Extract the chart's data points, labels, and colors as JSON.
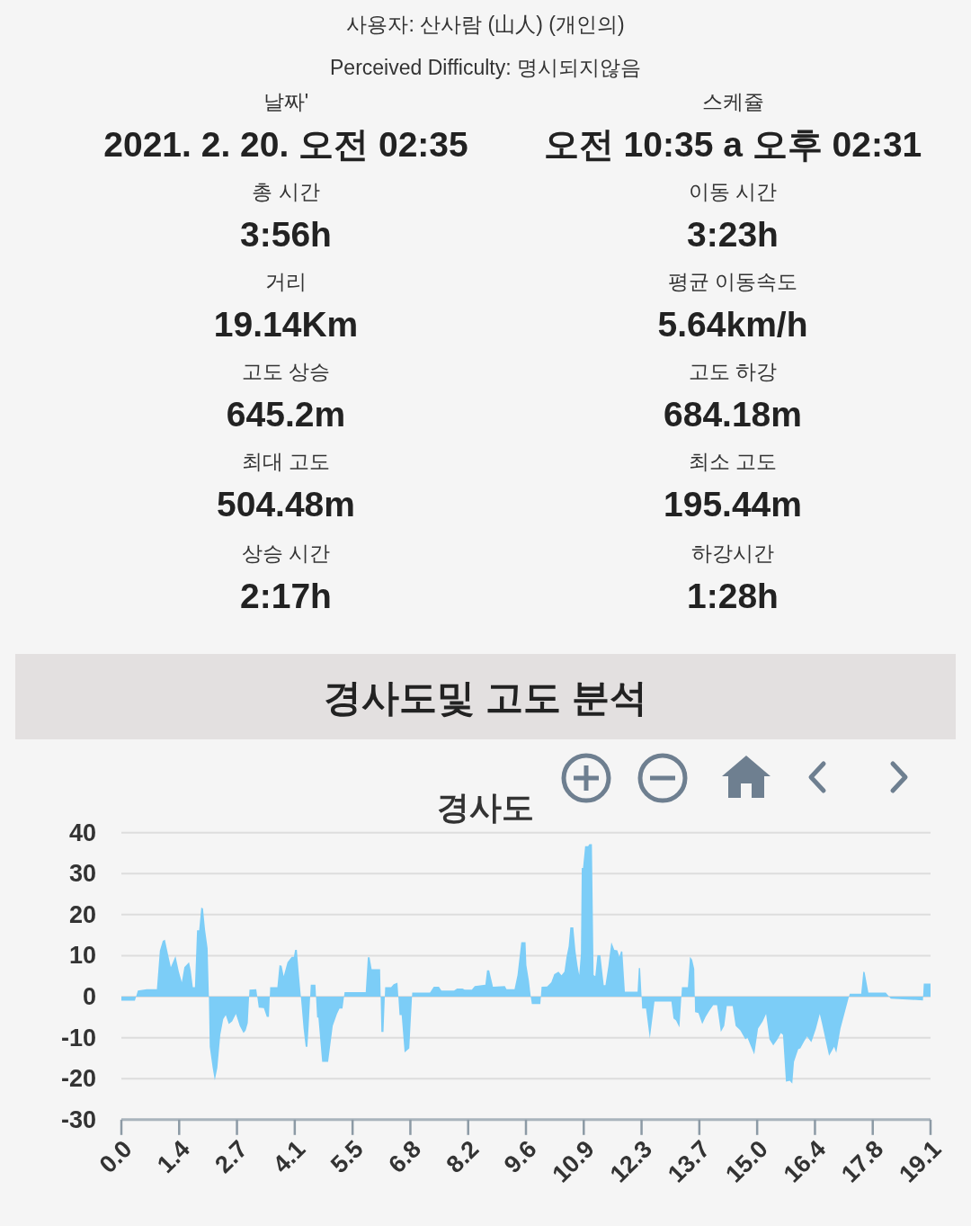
{
  "chart_data": [
    {
      "type": "other",
      "title": "사용자: 산사람 (山人) (개인의)",
      "subtitle": "Perceived Difficulty: 명시되지않음",
      "annotations": [
        "날짜'",
        "2021. 2. 20. 오전 02:35",
        "스케쥴",
        "오전 10:35 a 오후 02:31",
        "총 시간",
        "3:56h",
        "이동 시간",
        "3:23h",
        "거리",
        "19.14Km",
        "평균 이동속도",
        "5.64km/h",
        "고도 상승",
        "645.2m",
        "고도 하강",
        "684.18m",
        "최대 고도",
        "504.48m",
        "최소 고도",
        "195.44m",
        "상승 시간",
        "2:17h",
        "하강시간",
        "1:28h"
      ]
    },
    {
      "type": "area",
      "title": "경사도및 고도 분석",
      "subtitle": "경사도",
      "color": "#7ccdf7",
      "x": [
        0,
        0.32,
        0.39,
        0.6,
        0.84,
        0.91,
        0.98,
        1.03,
        1.1,
        1.17,
        1.28,
        1.36,
        1.43,
        1.49,
        1.6,
        1.64,
        1.69,
        1.74,
        1.79,
        1.84,
        1.89,
        1.93,
        1.98,
        2.04,
        2.07,
        2.09,
        2.16,
        2.21,
        2.27,
        2.34,
        2.41,
        2.47,
        2.54,
        2.62,
        2.71,
        2.8,
        2.89,
        2.94,
        2.99,
        3.03,
        3.19,
        3.25,
        3.37,
        3.44,
        3.49,
        3.52,
        3.69,
        3.74,
        3.79,
        3.84,
        3.93,
        4.03,
        4.08,
        4.11,
        4.15,
        4.2,
        4.25,
        4.31,
        4.36,
        4.4,
        4.43,
        4.48,
        4.59,
        4.63,
        4.66,
        4.75,
        4.89,
        5.0,
        5.1,
        5.16,
        5.23,
        5.28,
        5.78,
        5.83,
        5.87,
        5.92,
        6.12,
        6.15,
        6.2,
        6.24,
        6.38,
        6.44,
        6.53,
        6.58,
        6.63,
        6.7,
        6.81,
        6.88,
        7.3,
        7.39,
        7.51,
        7.57,
        7.87,
        7.94,
        8.07,
        8.12,
        8.29,
        8.36,
        8.61,
        8.65,
        8.7,
        8.79,
        9.07,
        9.11,
        9.3,
        9.37,
        9.46,
        9.56,
        9.58,
        9.64,
        9.69,
        9.71,
        9.91,
        9.94,
        10.07,
        10.17,
        10.24,
        10.34,
        10.41,
        10.48,
        10.53,
        10.58,
        10.62,
        10.69,
        10.74,
        10.79,
        10.83,
        10.87,
        10.89,
        10.92,
        10.97,
        11.04,
        11.07,
        11.13,
        11.17,
        11.21,
        11.26,
        11.33,
        11.41,
        11.45,
        11.52,
        11.59,
        11.66,
        11.73,
        11.78,
        11.82,
        11.85,
        11.91,
        12.21,
        12.24,
        12.27,
        12.32,
        12.41,
        12.5,
        12.61,
        13.01,
        13.06,
        13.12,
        13.2,
        13.26,
        13.4,
        13.45,
        13.5,
        13.55,
        13.57,
        13.65,
        13.74,
        13.82,
        13.91,
        14.0,
        14.09,
        14.18,
        14.26,
        14.32,
        14.46,
        14.53,
        14.64,
        14.76,
        14.81,
        14.97,
        15.06,
        15.17,
        15.25,
        15.33,
        15.42,
        15.52,
        15.6,
        15.65,
        15.72,
        15.81,
        15.87,
        15.91,
        16.01,
        16.06,
        16.15,
        16.22,
        16.32,
        16.43,
        16.52,
        16.57,
        16.74,
        16.86,
        16.91,
        17.01,
        17.21,
        17.23,
        17.5,
        17.55,
        17.58,
        17.67,
        18.08,
        18.2,
        18.96,
        18.98,
        19.14
      ],
      "values": [
        -1,
        -1,
        1.5,
        1.8,
        1.8,
        11.2,
        13.6,
        13.9,
        10.5,
        7.2,
        9.9,
        6.1,
        3.5,
        7.2,
        8.4,
        6.4,
        2.3,
        2.3,
        16.2,
        16.2,
        21.7,
        21.5,
        16.3,
        11.8,
        0,
        -12.2,
        -17.4,
        -20.4,
        -17.4,
        -9.3,
        -5.5,
        -4.5,
        -6.7,
        -6.0,
        -4.2,
        -7.1,
        -8.9,
        -8.2,
        -6.4,
        1.7,
        1.8,
        -2.7,
        -2.8,
        -4.9,
        -4.9,
        2.3,
        2.3,
        7.7,
        7.5,
        5.0,
        8.4,
        9.7,
        9.7,
        11.4,
        11.4,
        5.3,
        -0.5,
        -7.8,
        -12.2,
        -12.2,
        -7.1,
        2.9,
        2.9,
        -5.1,
        -5.1,
        -15.9,
        -15.9,
        -7.1,
        -4.2,
        -2.9,
        -2.9,
        1.1,
        1.1,
        9.6,
        9.6,
        6.7,
        6.7,
        -8.6,
        -8.6,
        2.3,
        2.3,
        3.0,
        3.4,
        -4.5,
        -4.5,
        -13.6,
        -12.6,
        1.0,
        1.0,
        2.4,
        2.4,
        1.5,
        1.5,
        2.0,
        2.0,
        1.7,
        1.7,
        2.6,
        2.9,
        6.4,
        6.4,
        2.4,
        2.6,
        1.8,
        1.8,
        5.3,
        13.3,
        13.3,
        7.7,
        3.9,
        -0.5,
        -1.8,
        -1.8,
        2.4,
        2.5,
        3.5,
        5.5,
        6.1,
        5.2,
        6.1,
        9.7,
        12.3,
        16.9,
        16.9,
        11.2,
        7.5,
        5.3,
        10.5,
        31.4,
        31.4,
        36.7,
        36.7,
        37.2,
        37.2,
        5.3,
        5.0,
        10.1,
        10.1,
        2.8,
        2.8,
        7.5,
        13.3,
        11.4,
        11.3,
        9.7,
        11.1,
        11.0,
        1.2,
        1.2,
        7.0,
        7.0,
        -2.9,
        -2.9,
        -10.2,
        -1.2,
        -1.2,
        -5.3,
        -5.8,
        -7.5,
        2.3,
        2.3,
        9.7,
        9.0,
        6.8,
        -3.8,
        -4.0,
        -6.7,
        -4.9,
        -3.4,
        -2.1,
        -2.1,
        -8.6,
        -7.1,
        -2.3,
        -2.3,
        -7.1,
        -8.2,
        -10.4,
        -10.0,
        -14.1,
        -7.8,
        -6.0,
        -4.2,
        -10.4,
        -11.9,
        -10.4,
        -8.9,
        -9.3,
        -20.7,
        -20.5,
        -21.2,
        -15.9,
        -12.8,
        -12.6,
        -10.9,
        -9.7,
        -11.1,
        -7.8,
        -4.2,
        -6.4,
        -14.4,
        -12.2,
        -13.7,
        -7.8,
        0,
        0.7,
        0.7,
        6.1,
        6.0,
        1.0,
        1.0,
        -0.5,
        -0.9,
        3.2,
        3.2
      ],
      "xlim": [
        0,
        19.14
      ],
      "xticks": [
        {
          "value": 0,
          "label": "0.0"
        },
        {
          "value": 1.367,
          "label": "1.4"
        },
        {
          "value": 2.734,
          "label": "2.7"
        },
        {
          "value": 4.101,
          "label": "4.1"
        },
        {
          "value": 5.469,
          "label": "5.5"
        },
        {
          "value": 6.836,
          "label": "6.8"
        },
        {
          "value": 8.203,
          "label": "8.2"
        },
        {
          "value": 9.57,
          "label": "9.6"
        },
        {
          "value": 10.937,
          "label": "10.9"
        },
        {
          "value": 12.304,
          "label": "12.3"
        },
        {
          "value": 13.671,
          "label": "13.7"
        },
        {
          "value": 15.039,
          "label": "15.0"
        },
        {
          "value": 16.406,
          "label": "16.4"
        },
        {
          "value": 17.773,
          "label": "17.8"
        },
        {
          "value": 19.14,
          "label": "19.1"
        }
      ],
      "ylim": [
        -30,
        40
      ],
      "yticks": [
        40,
        30,
        20,
        10,
        0,
        -10,
        -20,
        -30
      ],
      "grid": "y"
    }
  ]
}
